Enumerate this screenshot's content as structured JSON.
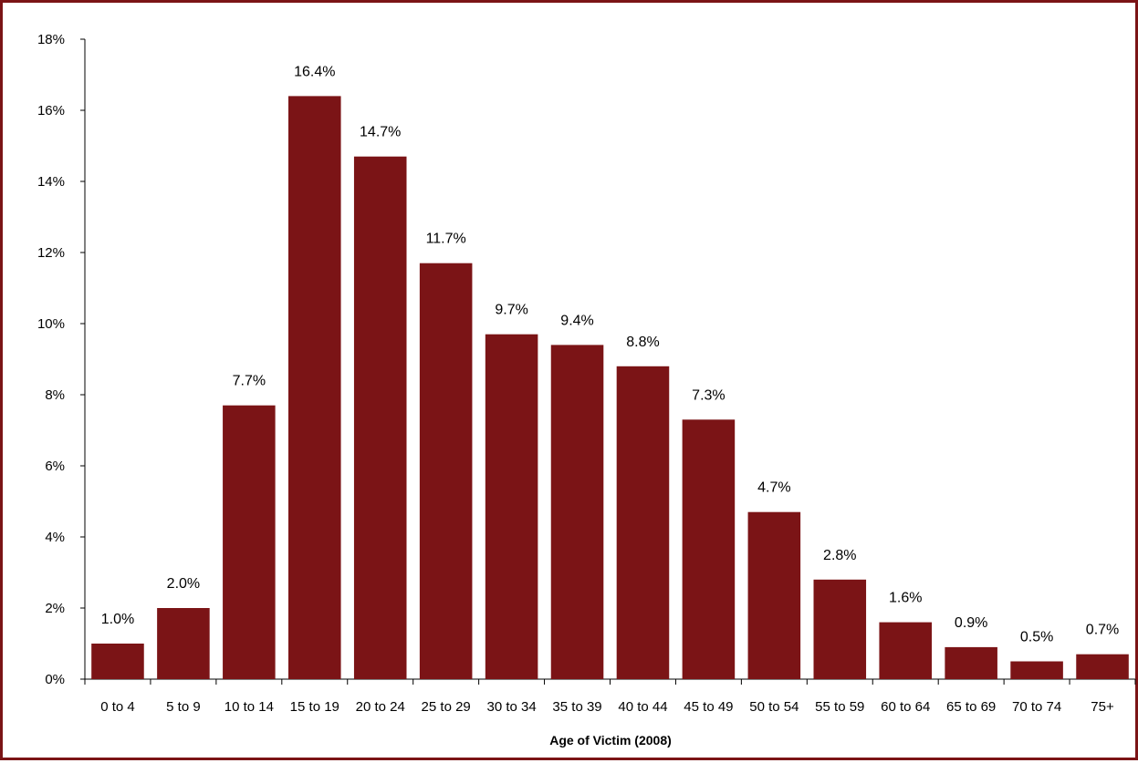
{
  "chart_data": {
    "type": "bar",
    "title": "",
    "xlabel": "Age of Victim (2008)",
    "ylabel": "",
    "categories": [
      "0 to 4",
      "5 to 9",
      "10 to 14",
      "15 to 19",
      "20 to 24",
      "25 to 29",
      "30 to 34",
      "35 to 39",
      "40 to 44",
      "45 to 49",
      "50 to 54",
      "55 to 59",
      "60 to 64",
      "65 to 69",
      "70 to 74",
      "75+"
    ],
    "values": [
      1.0,
      2.0,
      7.7,
      16.4,
      14.7,
      11.7,
      9.7,
      9.4,
      8.8,
      7.3,
      4.7,
      2.8,
      1.6,
      0.9,
      0.5,
      0.7
    ],
    "data_labels": [
      "1.0%",
      "2.0%",
      "7.7%",
      "16.4%",
      "14.7%",
      "11.7%",
      "9.7%",
      "9.4%",
      "8.8%",
      "7.3%",
      "4.7%",
      "2.8%",
      "1.6%",
      "0.9%",
      "0.5%",
      "0.7%"
    ],
    "ylim": [
      0,
      18
    ],
    "yticks": [
      0,
      2,
      4,
      6,
      8,
      10,
      12,
      14,
      16,
      18
    ],
    "ytick_labels": [
      "0%",
      "2%",
      "4%",
      "6%",
      "8%",
      "10%",
      "12%",
      "14%",
      "16%",
      "18%"
    ],
    "grid": false,
    "legend": "none",
    "bar_color": "#7b1416",
    "frame_color": "#7b1416"
  }
}
